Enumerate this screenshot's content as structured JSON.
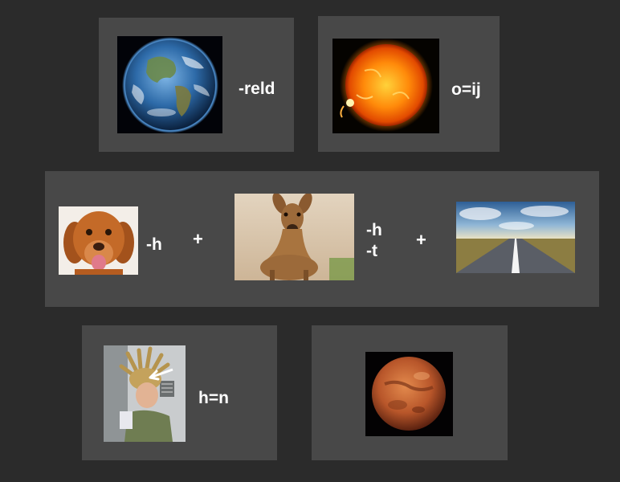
{
  "puzzle": {
    "row1": {
      "card_earth": {
        "image": "earth-image",
        "clue": "-reld"
      },
      "card_sun": {
        "image": "sun-image",
        "clue": "o=ij"
      }
    },
    "row2": {
      "dog": {
        "image": "dog-image",
        "clue": "-h"
      },
      "plus_1": "+",
      "deer": {
        "image": "deer-image",
        "clue_lines": [
          "-h",
          "-t"
        ]
      },
      "plus_2": "+",
      "road": {
        "image": "road-image"
      }
    },
    "row3": {
      "card_hair": {
        "image": "astronaut-hair-image",
        "clue": "h=n"
      },
      "card_mars": {
        "image": "mars-image"
      }
    }
  },
  "colors": {
    "background": "#2b2b2b",
    "panel": "#484848",
    "text": "#ffffff"
  }
}
